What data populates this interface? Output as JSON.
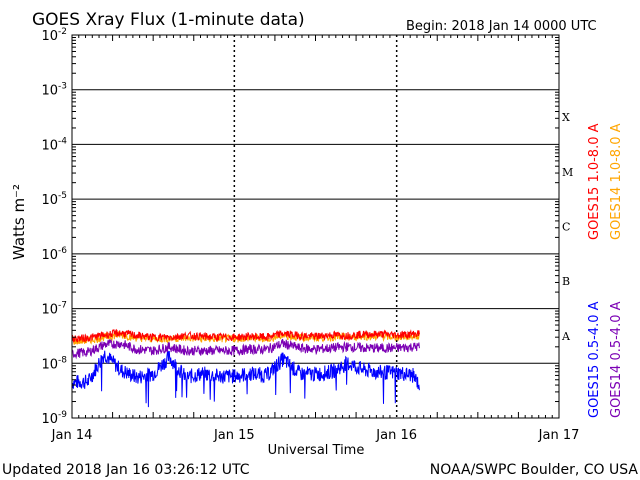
{
  "chart_data": {
    "type": "line",
    "title": "GOES Xray Flux (1-minute data)",
    "begin_label": "Begin:  2018 Jan 14 0000 UTC",
    "xlabel": "Universal Time",
    "ylabel": "Watts m⁻²",
    "y_scale": "log",
    "ylim": [
      1e-09,
      0.01
    ],
    "xlim_days": [
      0,
      3
    ],
    "grid": "horizontal decade lines, dotted day lines",
    "legend_placement": "right, vertical",
    "x_ticks": [
      {
        "day": 0,
        "label": "Jan 14"
      },
      {
        "day": 1,
        "label": "Jan 15"
      },
      {
        "day": 2,
        "label": "Jan 16"
      },
      {
        "day": 3,
        "label": "Jan 17"
      }
    ],
    "y_ticks": [
      {
        "value": 1e-09,
        "base": "10",
        "exp": "-9"
      },
      {
        "value": 1e-08,
        "base": "10",
        "exp": "-8"
      },
      {
        "value": 1e-07,
        "base": "10",
        "exp": "-7"
      },
      {
        "value": 1e-06,
        "base": "10",
        "exp": "-6"
      },
      {
        "value": 1e-05,
        "base": "10",
        "exp": "-5"
      },
      {
        "value": 0.0001,
        "base": "10",
        "exp": "-4"
      },
      {
        "value": 0.001,
        "base": "10",
        "exp": "-3"
      },
      {
        "value": 0.01,
        "base": "10",
        "exp": "-2"
      }
    ],
    "flare_classes": [
      {
        "label": "A",
        "value": 3.16e-08
      },
      {
        "label": "B",
        "value": 3.16e-07
      },
      {
        "label": "C",
        "value": 3.16e-06
      },
      {
        "label": "M",
        "value": 3.16e-05
      },
      {
        "label": "X",
        "value": 0.000316
      }
    ],
    "series": [
      {
        "name": "GOES15 1.0-8.0 A",
        "color": "#ff0000",
        "x": [
          0,
          0.1,
          0.2,
          0.3,
          0.4,
          0.5,
          0.6,
          0.7,
          0.8,
          0.9,
          1.0,
          1.1,
          1.2,
          1.3,
          1.4,
          1.5,
          1.6,
          1.7,
          1.8,
          1.9,
          2.0,
          2.1,
          2.14
        ],
        "y": [
          2.8e-08,
          2.9e-08,
          3.3e-08,
          3.6e-08,
          3.2e-08,
          3e-08,
          3e-08,
          3.2e-08,
          3.1e-08,
          3e-08,
          3e-08,
          3.1e-08,
          3e-08,
          3.5e-08,
          3.2e-08,
          3.1e-08,
          3.3e-08,
          3.2e-08,
          3.4e-08,
          3.4e-08,
          3.3e-08,
          3.4e-08,
          3.5e-08
        ]
      },
      {
        "name": "GOES14 1.0-8.0 A",
        "color": "#ffa500",
        "x": [
          0,
          0.1,
          0.2,
          0.3,
          0.4,
          0.5,
          0.6,
          0.7,
          0.8,
          0.9,
          1.0,
          1.1,
          1.2,
          1.3,
          1.4,
          1.5,
          1.6,
          1.7,
          1.8,
          1.9,
          2.0,
          2.1,
          2.14
        ],
        "y": [
          2.5e-08,
          2.6e-08,
          3e-08,
          3.3e-08,
          2.9e-08,
          2.8e-08,
          2.8e-08,
          2.9e-08,
          2.8e-08,
          2.8e-08,
          2.8e-08,
          2.9e-08,
          2.8e-08,
          3.2e-08,
          3e-08,
          2.9e-08,
          3e-08,
          3e-08,
          3.1e-08,
          3.1e-08,
          3e-08,
          3.1e-08,
          3.2e-08
        ]
      },
      {
        "name": "GOES15 0.5-4.0 A",
        "color": "#0000ff",
        "x": [
          0,
          0.1,
          0.2,
          0.3,
          0.4,
          0.5,
          0.6,
          0.7,
          0.8,
          0.9,
          1.0,
          1.1,
          1.2,
          1.3,
          1.4,
          1.5,
          1.6,
          1.7,
          1.8,
          1.9,
          2.0,
          2.1,
          2.14
        ],
        "y": [
          4.5e-09,
          4.6e-09,
          1.5e-08,
          7.5e-09,
          5.5e-09,
          6.5e-09,
          1.3e-08,
          5.5e-09,
          6.5e-09,
          5.8e-09,
          5.8e-09,
          6.5e-09,
          6e-09,
          1.2e-08,
          6.5e-09,
          6.3e-09,
          7e-09,
          1e-08,
          7.5e-09,
          6.8e-09,
          6.8e-09,
          6e-09,
          4e-09
        ]
      },
      {
        "name": "GOES14 0.5-4.0 A",
        "color": "#7b00b4",
        "x": [
          0,
          0.1,
          0.2,
          0.3,
          0.4,
          0.5,
          0.6,
          0.7,
          0.8,
          0.9,
          1.0,
          1.1,
          1.2,
          1.3,
          1.4,
          1.5,
          1.6,
          1.7,
          1.8,
          1.9,
          2.0,
          2.1,
          2.14
        ],
        "y": [
          1.5e-08,
          1.6e-08,
          2.2e-08,
          2.3e-08,
          1.8e-08,
          1.7e-08,
          2e-08,
          1.7e-08,
          1.7e-08,
          1.7e-08,
          1.7e-08,
          1.8e-08,
          1.8e-08,
          2.3e-08,
          1.9e-08,
          1.8e-08,
          1.9e-08,
          2e-08,
          1.9e-08,
          1.9e-08,
          1.9e-08,
          2e-08,
          2e-08
        ]
      }
    ]
  },
  "footer": {
    "updated": "Updated 2018 Jan 16 03:26:12 UTC",
    "source": "NOAA/SWPC Boulder, CO USA"
  }
}
